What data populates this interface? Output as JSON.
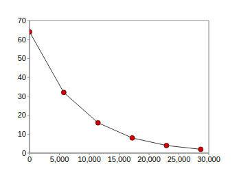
{
  "chart_data": {
    "type": "line",
    "x": [
      0,
      5730,
      11460,
      17190,
      22920,
      28650
    ],
    "values": [
      64,
      32,
      16,
      8,
      4,
      2
    ],
    "color": "#cc0000",
    "marker": "circle",
    "xlim": [
      0,
      30000
    ],
    "xticks": [
      0,
      {
        "value": 5000,
        "label": "5,000"
      },
      {
        "value": 10000,
        "label": "10,000"
      },
      {
        "value": 15000,
        "label": "15,000"
      },
      {
        "value": 20000,
        "label": "20,000"
      },
      {
        "value": 25000,
        "label": "25,000"
      },
      {
        "value": 30000,
        "label": "30,000"
      }
    ],
    "ylim": [
      0,
      70
    ],
    "yticks": [
      0,
      10,
      20,
      30,
      40,
      50,
      60,
      70
    ],
    "grid": false
  }
}
